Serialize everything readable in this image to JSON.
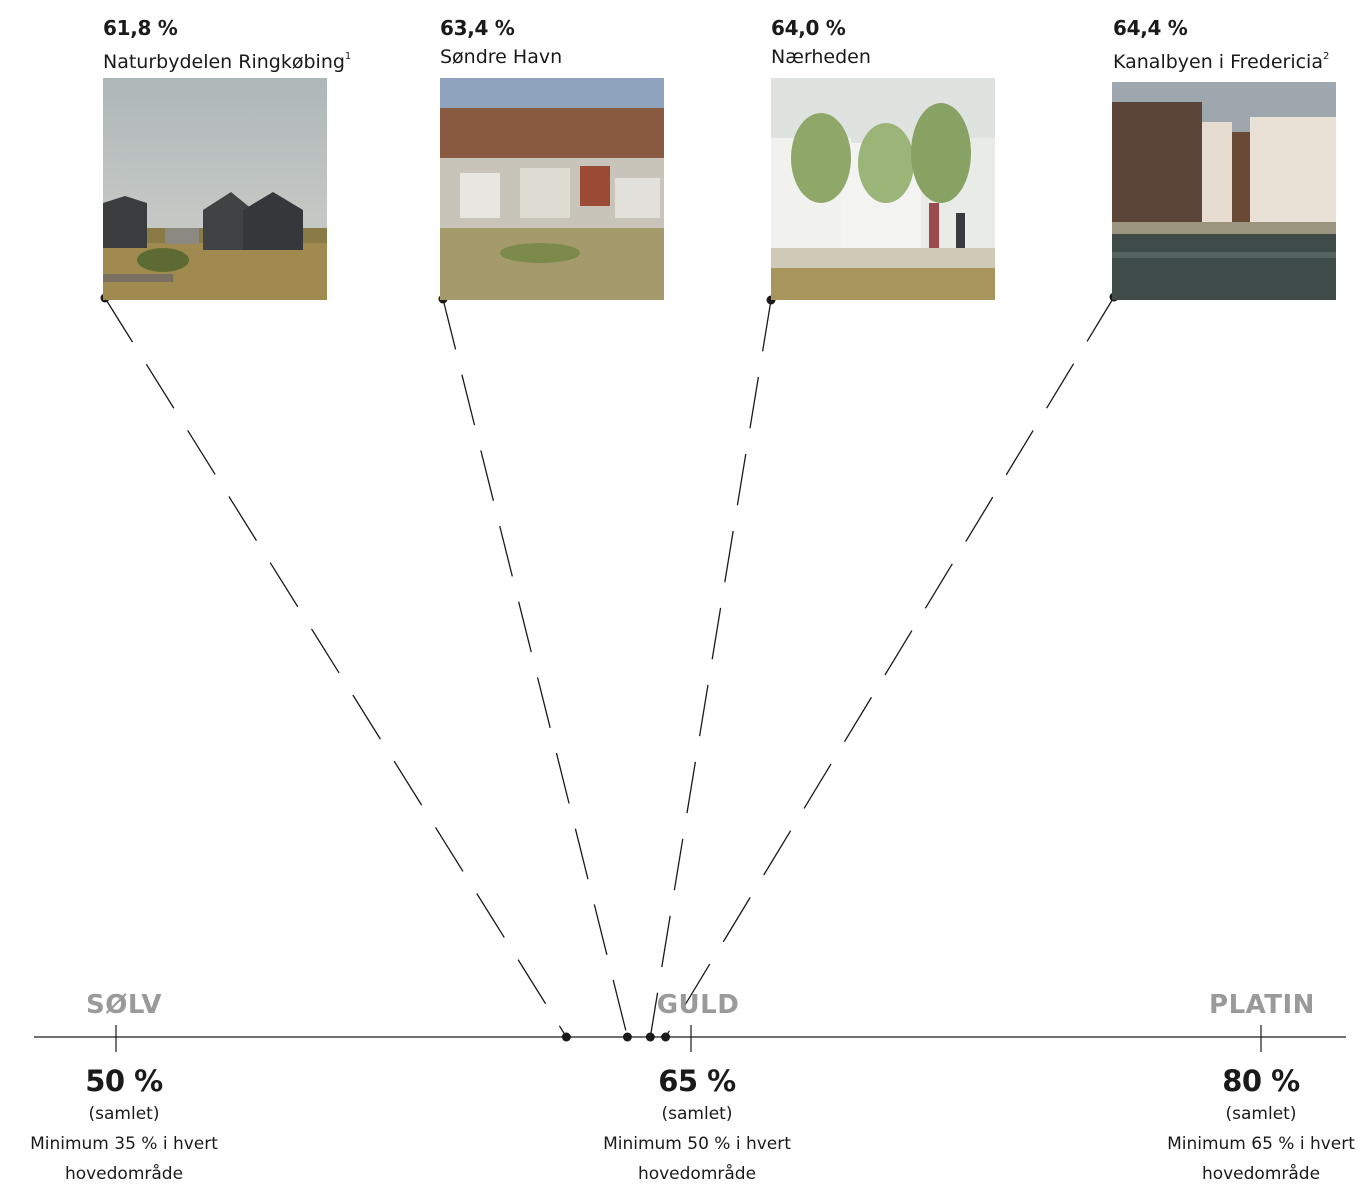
{
  "projects": [
    {
      "percent": "61,8 %",
      "name": "Naturbydelen Ringkøbing",
      "note": "1",
      "photo": "dune-houses-photo"
    },
    {
      "percent": "63,4 %",
      "name": "Søndre Havn",
      "note": "",
      "photo": "aerial-city-photo"
    },
    {
      "percent": "64,0 %",
      "name": "Nærheden",
      "note": "",
      "photo": "green-street-photo"
    },
    {
      "percent": "64,4 %",
      "name": "Kanalbyen i Fredericia",
      "note": "2",
      "photo": "canal-buildings-photo"
    }
  ],
  "levels": [
    {
      "name": "SØLV",
      "percent": "50 %",
      "sub": "(samlet)",
      "note_line1": "Minimum 35 % i hvert",
      "note_line2": "hovedområde"
    },
    {
      "name": "GULD",
      "percent": "65 %",
      "sub": "(samlet)",
      "note_line1": "Minimum 50 % i hvert",
      "note_line2": "hovedområde"
    },
    {
      "name": "PLATIN",
      "percent": "80 %",
      "sub": "(samlet)",
      "note_line1": "Minimum 65 % i hvert",
      "note_line2": "hovedområde"
    }
  ],
  "scale_values": [
    61.8,
    63.4,
    64.0,
    64.4
  ],
  "colors": {
    "line": "#1a1a1a",
    "level_label": "#9a9a9a"
  }
}
